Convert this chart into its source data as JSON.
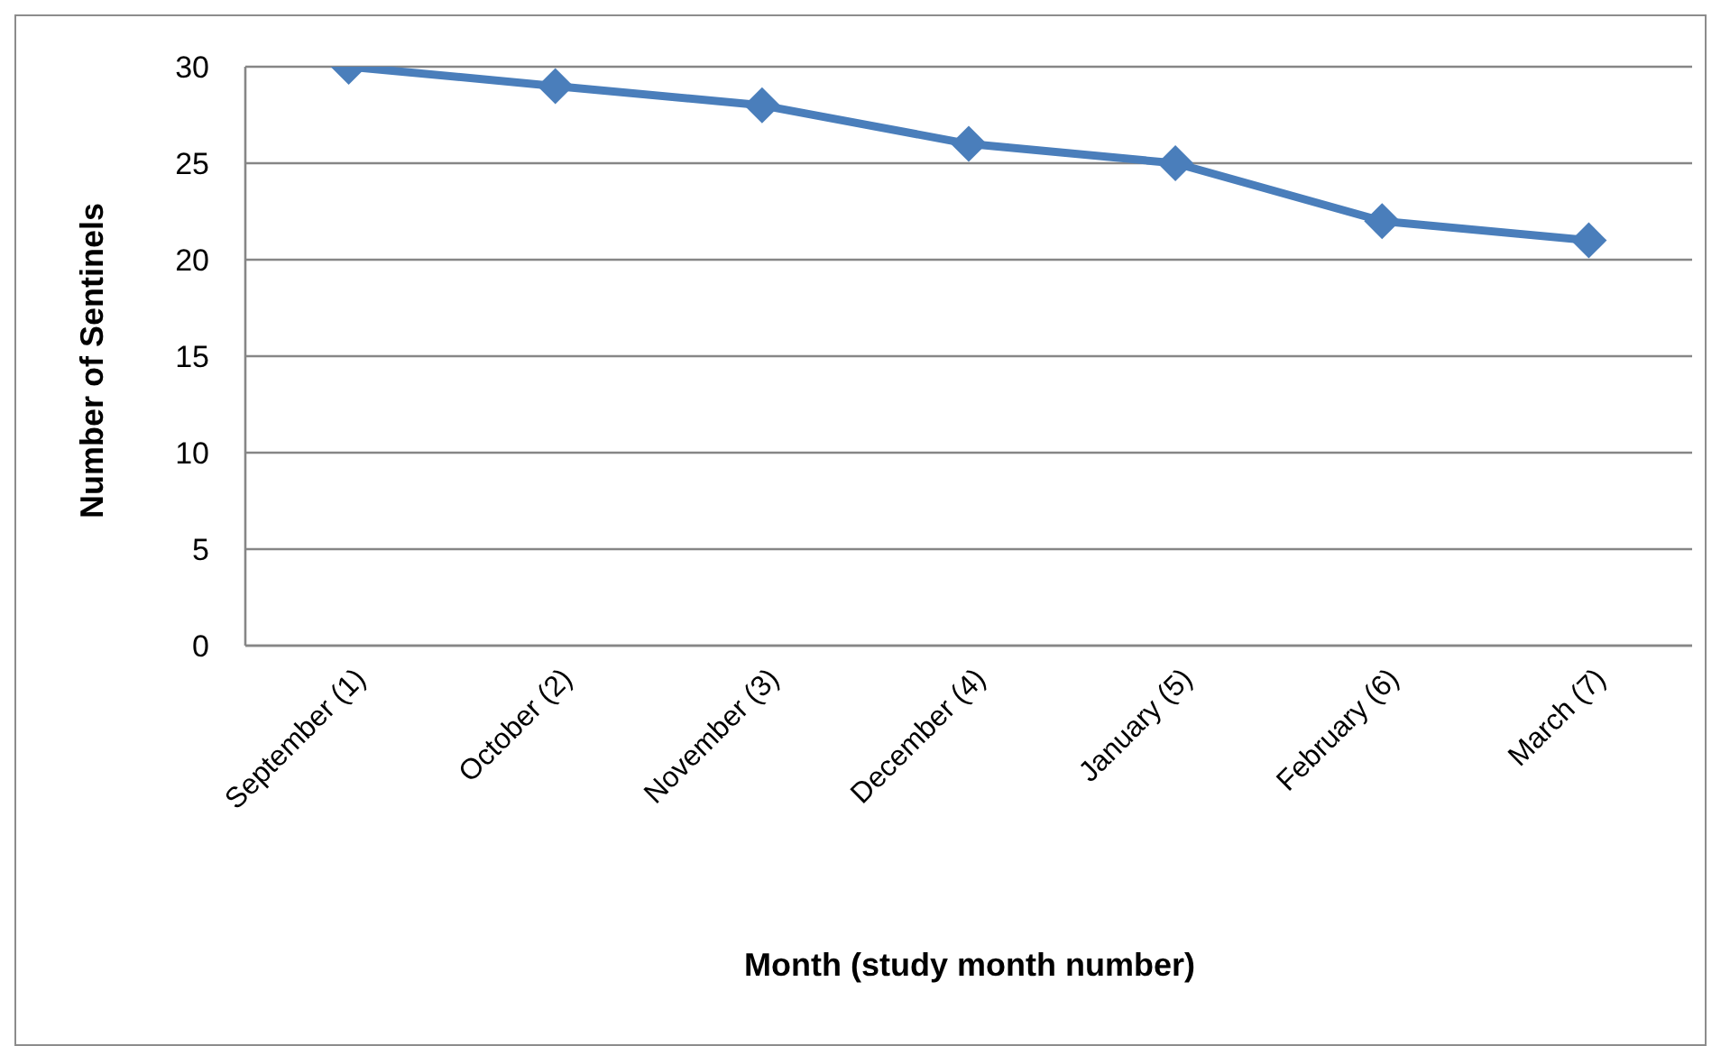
{
  "chart_data": {
    "type": "line",
    "xlabel": "Month (study month number)",
    "ylabel": "Number of Sentinels",
    "categories": [
      "September (1)",
      "October (2)",
      "November (3)",
      "December (4)",
      "January (5)",
      "February (6)",
      "March (7)"
    ],
    "series": [
      {
        "color": "#4a7ebb",
        "values": [
          30,
          29,
          28,
          26,
          25,
          22,
          21
        ]
      }
    ],
    "ylim": [
      0,
      30
    ],
    "yticks": [
      0,
      5,
      10,
      15,
      20,
      25,
      30
    ],
    "grid": "y",
    "marker": "diamond"
  }
}
